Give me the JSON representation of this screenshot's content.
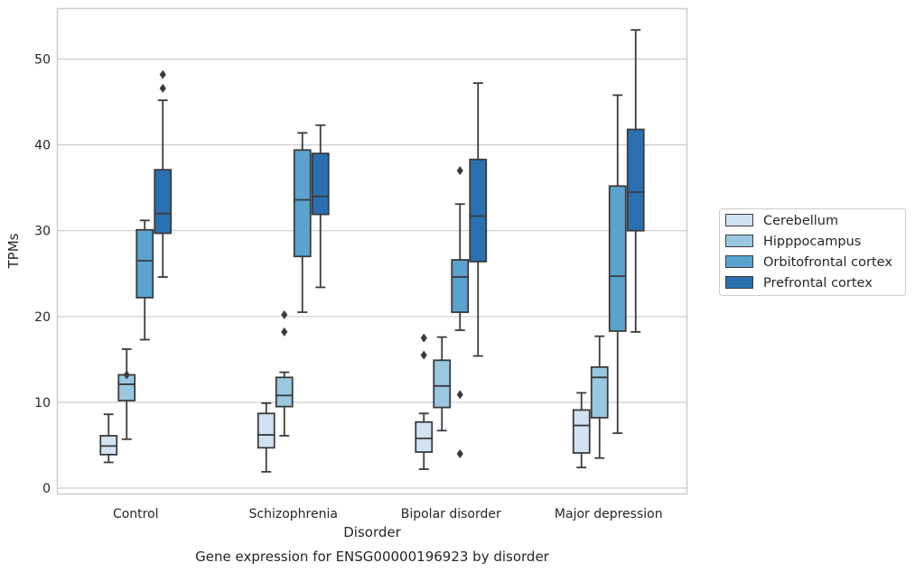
{
  "chart_data": {
    "type": "box",
    "title": "Gene expression for ENSG00000196923 by disorder",
    "xlabel": "Disorder",
    "ylabel": "TPMs",
    "ylim": [
      -0.6,
      56.0
    ],
    "yticks": [
      0,
      10,
      20,
      30,
      40,
      50
    ],
    "grid": "horizontal",
    "legend_position": "right",
    "categories": [
      "Control",
      "Schizophrenia",
      "Bipolar disorder",
      "Major depression"
    ],
    "series": [
      {
        "name": "Cerebellum",
        "color": "#d1e2f2",
        "boxes": [
          {
            "whislo": 3.0,
            "q1": 3.9,
            "med": 4.9,
            "q3": 6.1,
            "whishi": 8.6,
            "fliers": []
          },
          {
            "whislo": 1.9,
            "q1": 4.7,
            "med": 6.2,
            "q3": 8.7,
            "whishi": 9.9,
            "fliers": []
          },
          {
            "whislo": 2.2,
            "q1": 4.2,
            "med": 5.8,
            "q3": 7.7,
            "whishi": 8.7,
            "fliers": [
              15.5,
              17.5
            ]
          },
          {
            "whislo": 2.4,
            "q1": 4.1,
            "med": 7.3,
            "q3": 9.1,
            "whishi": 11.1,
            "fliers": []
          }
        ]
      },
      {
        "name": "Hipppocampus",
        "color": "#9ac8e0",
        "boxes": [
          {
            "whislo": 5.7,
            "q1": 10.2,
            "med": 12.1,
            "q3": 13.2,
            "whishi": 16.2,
            "fliers": [
              13.2
            ]
          },
          {
            "whislo": 6.1,
            "q1": 9.5,
            "med": 10.8,
            "q3": 12.9,
            "whishi": 13.5,
            "fliers": [
              18.2,
              20.2
            ]
          },
          {
            "whislo": 6.7,
            "q1": 9.4,
            "med": 11.9,
            "q3": 14.9,
            "whishi": 17.6,
            "fliers": []
          },
          {
            "whislo": 3.5,
            "q1": 8.2,
            "med": 12.9,
            "q3": 14.1,
            "whishi": 17.7,
            "fliers": []
          }
        ]
      },
      {
        "name": "Orbitofrontal cortex",
        "color": "#5ba3cf",
        "boxes": [
          {
            "whislo": 17.3,
            "q1": 22.2,
            "med": 26.5,
            "q3": 30.1,
            "whishi": 31.2,
            "fliers": []
          },
          {
            "whislo": 20.5,
            "q1": 27.0,
            "med": 33.6,
            "q3": 39.4,
            "whishi": 41.4,
            "fliers": []
          },
          {
            "whislo": 18.4,
            "q1": 20.5,
            "med": 24.6,
            "q3": 26.6,
            "whishi": 33.1,
            "fliers": [
              4.0,
              10.9,
              37.0
            ]
          },
          {
            "whislo": 6.4,
            "q1": 18.3,
            "med": 24.7,
            "q3": 35.2,
            "whishi": 45.8,
            "fliers": []
          }
        ]
      },
      {
        "name": "Prefrontal cortex",
        "color": "#2a70b1",
        "boxes": [
          {
            "whislo": 24.6,
            "q1": 29.7,
            "med": 32.0,
            "q3": 37.1,
            "whishi": 45.2,
            "fliers": [
              46.6,
              48.2
            ]
          },
          {
            "whislo": 23.4,
            "q1": 31.9,
            "med": 34.0,
            "q3": 39.0,
            "whishi": 42.3,
            "fliers": []
          },
          {
            "whislo": 15.4,
            "q1": 26.4,
            "med": 31.7,
            "q3": 38.3,
            "whishi": 47.2,
            "fliers": []
          },
          {
            "whislo": 18.2,
            "q1": 30.0,
            "med": 34.5,
            "q3": 41.8,
            "whishi": 53.4,
            "fliers": []
          }
        ]
      }
    ]
  }
}
